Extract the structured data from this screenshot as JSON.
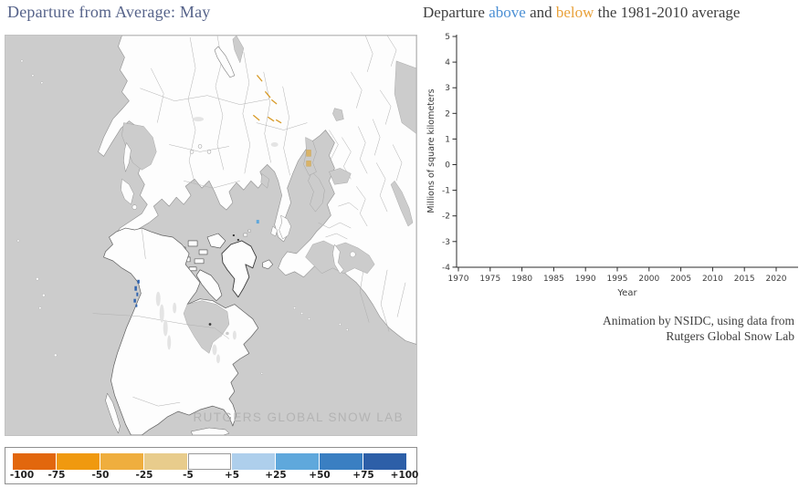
{
  "map_panel": {
    "title": "Departure from Average: May",
    "title_color": "#56638a",
    "watermark": "RUTGERS GLOBAL SNOW LAB",
    "ocean_color": "#cccccc",
    "land_color": "#fdfdfd",
    "legend": {
      "boundary_labels": [
        "-100",
        "-75",
        "-50",
        "-25",
        "-5",
        "+5",
        "+25",
        "+50",
        "+75",
        "+100"
      ],
      "swatch_colors": [
        "#e2670d",
        "#f0990f",
        "#efae3e",
        "#e8cc8c",
        "#ffffff",
        "#aecfec",
        "#5fa8dc",
        "#3a7fc2",
        "#2d5fa8"
      ]
    }
  },
  "chart_panel": {
    "title_parts": [
      {
        "text": "Departure ",
        "color": "#3f3f3f"
      },
      {
        "text": "above",
        "color": "#4b8fd4"
      },
      {
        "text": " and ",
        "color": "#3f3f3f"
      },
      {
        "text": "below",
        "color": "#e9a13a"
      },
      {
        "text": " the 1981-2010 average",
        "color": "#3f3f3f"
      }
    ],
    "attribution_line1": "Animation by NSIDC, using data from",
    "attribution_line2": "Rutgers Global Snow Lab"
  },
  "chart_data": {
    "type": "line",
    "title": "Departure above and below the 1981-2010 average",
    "xlabel": "Year",
    "ylabel": "Millions of square kilometers",
    "x_ticks": [
      1970,
      1975,
      1980,
      1985,
      1990,
      1995,
      2000,
      2005,
      2010,
      2015,
      2020
    ],
    "y_ticks": [
      5,
      4,
      3,
      2,
      1,
      0,
      -1,
      -2,
      -3,
      -4
    ],
    "xlim": [
      1969.5,
      2023.5
    ],
    "ylim": [
      -4,
      5
    ],
    "grid": false,
    "series": []
  }
}
